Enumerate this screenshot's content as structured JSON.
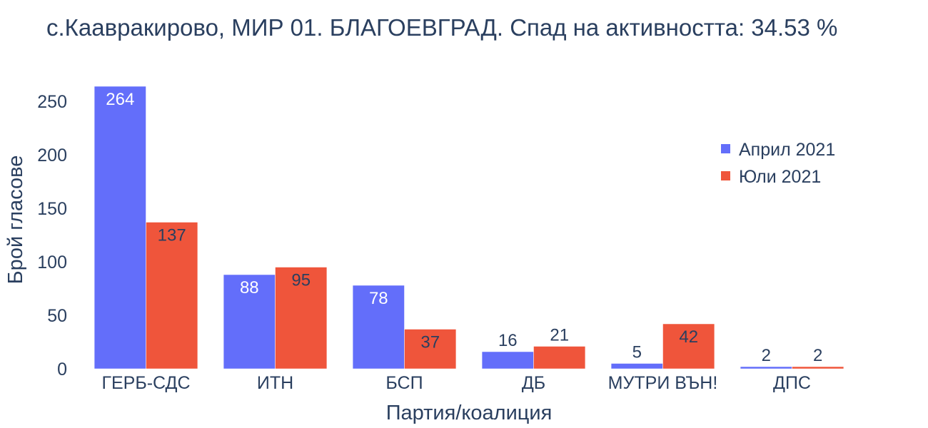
{
  "chart_data": {
    "type": "bar",
    "barmode": "grouped",
    "title": "с.Каавракирово, МИР 01. БЛАГОЕВГРАД. Спад на активността: 34.53 %",
    "xlabel": "Партия/коалиция",
    "ylabel": "Брой гласове",
    "categories": [
      "ГЕРБ-СДС",
      "ИТН",
      "БСП",
      "ДБ",
      "МУТРИ ВЪН!",
      "ДПС"
    ],
    "series": [
      {
        "name": "Април 2021",
        "color": "#636efa",
        "values": [
          264,
          88,
          78,
          16,
          5,
          2
        ]
      },
      {
        "name": "Юли 2021",
        "color": "#ef553b",
        "values": [
          137,
          95,
          37,
          21,
          42,
          2
        ]
      }
    ],
    "ylim": [
      0,
      264
    ],
    "yticks": [
      0,
      50,
      100,
      150,
      200,
      250
    ],
    "grid": false,
    "legend_position": "right"
  }
}
